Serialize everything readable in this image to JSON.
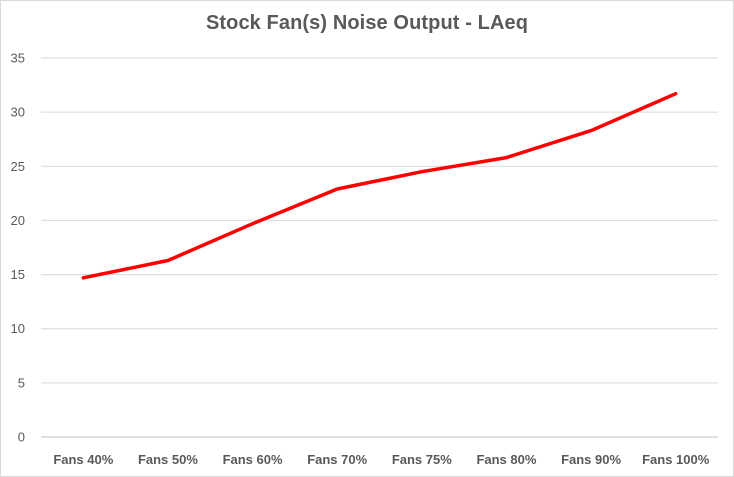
{
  "chart_data": {
    "type": "line",
    "title": "Stock Fan(s) Noise Output - LAeq",
    "xlabel": "",
    "ylabel": "",
    "categories": [
      "Fans 40%",
      "Fans 50%",
      "Fans 60%",
      "Fans 70%",
      "Fans 75%",
      "Fans 80%",
      "Fans 90%",
      "Fans 100%"
    ],
    "series": [
      {
        "values": [
          14.7,
          16.3,
          19.7,
          22.9,
          24.5,
          25.8,
          28.3,
          31.7
        ],
        "color": "#ff0000"
      }
    ],
    "ylim": [
      0,
      35
    ],
    "yticks": [
      0,
      5,
      10,
      15,
      20,
      25,
      30,
      35
    ],
    "grid": true,
    "legend": "none"
  }
}
